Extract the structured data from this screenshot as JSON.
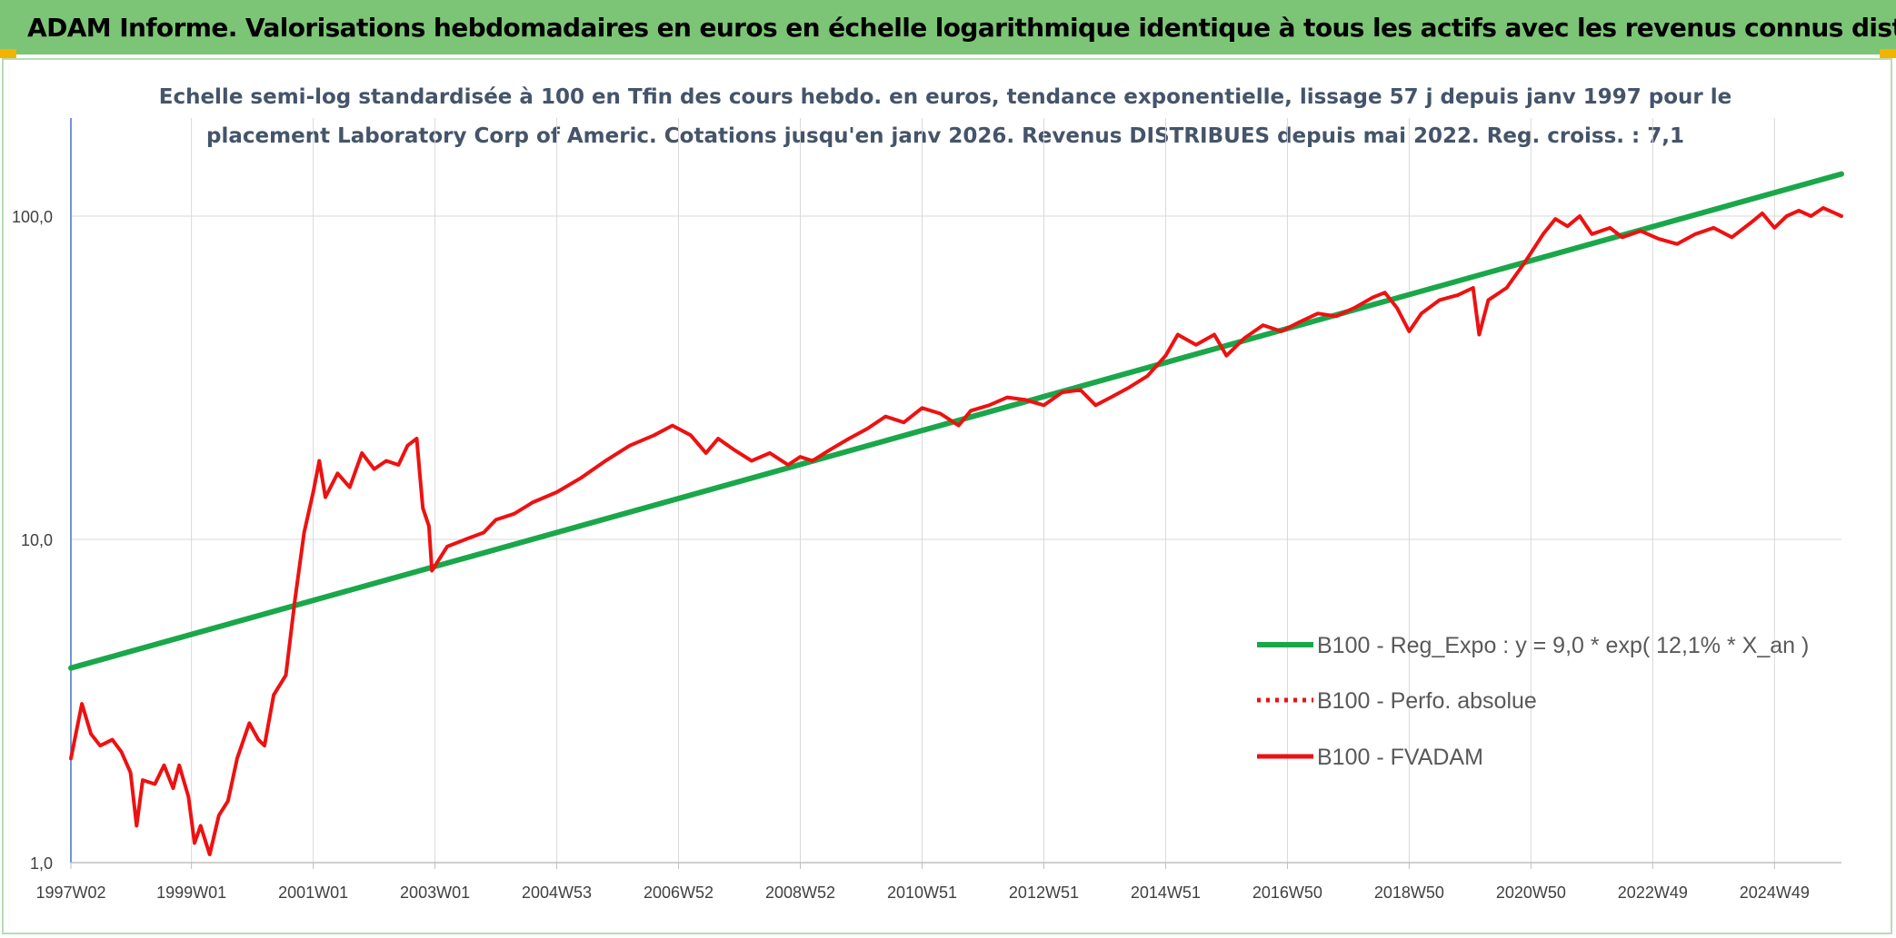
{
  "header": {
    "title": "ADAM Informe. Valorisations hebdomadaires en euros en échelle logarithmique identique à tous les actifs avec les revenus connus distribués"
  },
  "colors": {
    "header_bg": "#7cc576",
    "regression": "#1aa74a",
    "fvadam": "#ee1111",
    "accent_corner": "#f2b400"
  },
  "chart_data": {
    "type": "line",
    "title_lines": [
      "Echelle semi-log standardisée à 100 en Tfin des cours hebdo. en euros, tendance exponentielle, lissage 57 j depuis janv 1997 pour le",
      "placement Laboratory Corp of Americ. Cotations jusqu'en janv 2026. Revenus DISTRIBUES depuis mai 2022. Reg. croiss. : 7,1"
    ],
    "y_scale": "log",
    "ylim": [
      1,
      200
    ],
    "y_ticks": [
      "1,0",
      "10,0",
      "100,0"
    ],
    "y_tick_values": [
      1,
      10,
      100
    ],
    "x_range": [
      1997.02,
      2026.1
    ],
    "x_ticks": [
      "1997W02",
      "1999W01",
      "2001W01",
      "2003W01",
      "2004W53",
      "2006W52",
      "2008W52",
      "2010W51",
      "2012W51",
      "2014W51",
      "2016W50",
      "2018W50",
      "2020W50",
      "2022W49",
      "2024W49"
    ],
    "x_tick_values": [
      1997.02,
      1999.0,
      2001.0,
      2003.0,
      2005.0,
      2007.0,
      2009.0,
      2011.0,
      2013.0,
      2015.0,
      2017.0,
      2019.0,
      2021.0,
      2023.0,
      2025.0
    ],
    "gridlines": true,
    "legend_placement": "bottom-right",
    "series": [
      {
        "name": "B100 - Reg_Expo : y = 9,0 * exp( 12,1% *  X_an )",
        "style": "solid",
        "color": "#1aa74a",
        "points": [
          [
            1997.02,
            4.0
          ],
          [
            2026.1,
            135.0
          ]
        ]
      },
      {
        "name": "B100 - Perfo. absolue",
        "style": "dotted",
        "color": "#ee1111",
        "points": []
      },
      {
        "name": "B100 - FVADAM",
        "style": "solid",
        "color": "#ee1111",
        "points": [
          [
            1997.02,
            2.1
          ],
          [
            1997.2,
            3.1
          ],
          [
            1997.35,
            2.5
          ],
          [
            1997.5,
            2.3
          ],
          [
            1997.7,
            2.4
          ],
          [
            1997.85,
            2.2
          ],
          [
            1998.0,
            1.9
          ],
          [
            1998.1,
            1.3
          ],
          [
            1998.2,
            1.8
          ],
          [
            1998.4,
            1.75
          ],
          [
            1998.55,
            2.0
          ],
          [
            1998.7,
            1.7
          ],
          [
            1998.8,
            2.0
          ],
          [
            1998.95,
            1.6
          ],
          [
            1999.05,
            1.15
          ],
          [
            1999.15,
            1.3
          ],
          [
            1999.3,
            1.06
          ],
          [
            1999.45,
            1.4
          ],
          [
            1999.6,
            1.55
          ],
          [
            1999.75,
            2.1
          ],
          [
            1999.95,
            2.7
          ],
          [
            2000.1,
            2.4
          ],
          [
            2000.2,
            2.3
          ],
          [
            2000.35,
            3.3
          ],
          [
            2000.55,
            3.8
          ],
          [
            2000.7,
            6.5
          ],
          [
            2000.85,
            10.5
          ],
          [
            2001.0,
            14.0
          ],
          [
            2001.1,
            17.5
          ],
          [
            2001.2,
            13.5
          ],
          [
            2001.4,
            16.0
          ],
          [
            2001.6,
            14.5
          ],
          [
            2001.8,
            18.5
          ],
          [
            2002.0,
            16.5
          ],
          [
            2002.2,
            17.5
          ],
          [
            2002.4,
            17.0
          ],
          [
            2002.55,
            19.5
          ],
          [
            2002.7,
            20.5
          ],
          [
            2002.75,
            16.0
          ],
          [
            2002.8,
            12.5
          ],
          [
            2002.9,
            11.0
          ],
          [
            2002.95,
            8.0
          ],
          [
            2003.2,
            9.5
          ],
          [
            2003.5,
            10.0
          ],
          [
            2003.8,
            10.5
          ],
          [
            2004.0,
            11.5
          ],
          [
            2004.3,
            12.0
          ],
          [
            2004.6,
            13.0
          ],
          [
            2005.0,
            14.0
          ],
          [
            2005.4,
            15.5
          ],
          [
            2005.8,
            17.5
          ],
          [
            2006.2,
            19.5
          ],
          [
            2006.6,
            21.0
          ],
          [
            2006.9,
            22.5
          ],
          [
            2007.2,
            21.0
          ],
          [
            2007.45,
            18.5
          ],
          [
            2007.65,
            20.5
          ],
          [
            2007.9,
            19.0
          ],
          [
            2008.2,
            17.5
          ],
          [
            2008.5,
            18.5
          ],
          [
            2008.8,
            17.0
          ],
          [
            2009.0,
            18.0
          ],
          [
            2009.2,
            17.5
          ],
          [
            2009.5,
            19.0
          ],
          [
            2009.8,
            20.5
          ],
          [
            2010.1,
            22.0
          ],
          [
            2010.4,
            24.0
          ],
          [
            2010.7,
            23.0
          ],
          [
            2011.0,
            25.5
          ],
          [
            2011.3,
            24.5
          ],
          [
            2011.6,
            22.5
          ],
          [
            2011.8,
            25.0
          ],
          [
            2012.1,
            26.0
          ],
          [
            2012.4,
            27.5
          ],
          [
            2012.7,
            27.0
          ],
          [
            2013.0,
            26.0
          ],
          [
            2013.3,
            28.5
          ],
          [
            2013.6,
            29.0
          ],
          [
            2013.85,
            26.0
          ],
          [
            2014.1,
            27.5
          ],
          [
            2014.4,
            29.5
          ],
          [
            2014.7,
            32.0
          ],
          [
            2015.0,
            37.0
          ],
          [
            2015.2,
            43.0
          ],
          [
            2015.5,
            40.0
          ],
          [
            2015.8,
            43.0
          ],
          [
            2016.0,
            37.0
          ],
          [
            2016.3,
            42.0
          ],
          [
            2016.6,
            46.0
          ],
          [
            2016.9,
            44.0
          ],
          [
            2017.2,
            47.0
          ],
          [
            2017.5,
            50.0
          ],
          [
            2017.8,
            49.0
          ],
          [
            2018.1,
            52.0
          ],
          [
            2018.4,
            56.0
          ],
          [
            2018.6,
            58.0
          ],
          [
            2018.8,
            52.0
          ],
          [
            2019.0,
            44.0
          ],
          [
            2019.2,
            50.0
          ],
          [
            2019.5,
            55.0
          ],
          [
            2019.8,
            57.0
          ],
          [
            2020.05,
            60.0
          ],
          [
            2020.15,
            43.0
          ],
          [
            2020.3,
            55.0
          ],
          [
            2020.6,
            60.0
          ],
          [
            2020.9,
            72.0
          ],
          [
            2021.2,
            88.0
          ],
          [
            2021.4,
            98.0
          ],
          [
            2021.6,
            93.0
          ],
          [
            2021.8,
            100.0
          ],
          [
            2022.0,
            88.0
          ],
          [
            2022.3,
            92.0
          ],
          [
            2022.5,
            86.0
          ],
          [
            2022.8,
            90.0
          ],
          [
            2023.1,
            85.0
          ],
          [
            2023.4,
            82.0
          ],
          [
            2023.7,
            88.0
          ],
          [
            2024.0,
            92.0
          ],
          [
            2024.3,
            86.0
          ],
          [
            2024.6,
            95.0
          ],
          [
            2024.8,
            102.0
          ],
          [
            2025.0,
            92.0
          ],
          [
            2025.2,
            100.0
          ],
          [
            2025.4,
            104.0
          ],
          [
            2025.6,
            100.0
          ],
          [
            2025.8,
            106.0
          ],
          [
            2026.0,
            102.0
          ],
          [
            2026.1,
            100.0
          ]
        ]
      }
    ]
  }
}
